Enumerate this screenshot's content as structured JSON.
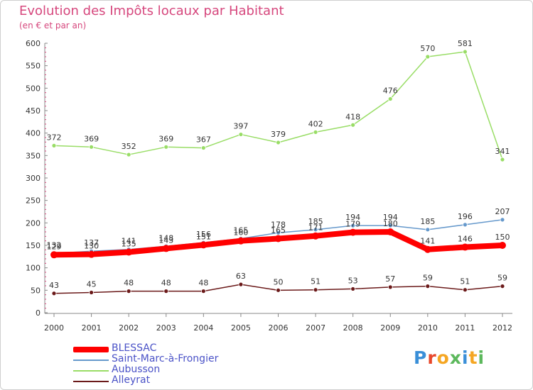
{
  "header": {
    "title": "Evolution des Impôts locaux par Habitant",
    "subtitle": "(en € et par an)"
  },
  "chart_data": {
    "type": "line",
    "title": "Evolution des Impôts locaux par Habitant",
    "subtitle": "(en € et par an)",
    "xlabel": "",
    "ylabel": "",
    "x": [
      "2000",
      "2001",
      "2002",
      "2003",
      "2004",
      "2005",
      "2006",
      "2007",
      "2008",
      "2009",
      "2010",
      "2011",
      "2012"
    ],
    "ylim": [
      0,
      600
    ],
    "yticks": [
      0,
      50,
      100,
      150,
      200,
      250,
      300,
      350,
      400,
      450,
      500,
      550,
      600
    ],
    "grid": false,
    "legend_position": "bottom-left",
    "series": [
      {
        "name": "BLESSAC",
        "color": "#ff0000",
        "values": [
          129,
          130,
          135,
          143,
          151,
          160,
          165,
          171,
          179,
          180,
          141,
          146,
          150
        ]
      },
      {
        "name": "Saint-Marc-à-Frongier",
        "color": "#6699cc",
        "values": [
          132,
          137,
          141,
          148,
          156,
          165,
          178,
          185,
          194,
          194,
          185,
          196,
          207
        ]
      },
      {
        "name": "Aubusson",
        "color": "#99dd66",
        "values": [
          372,
          369,
          352,
          369,
          367,
          397,
          379,
          402,
          418,
          476,
          570,
          581,
          341
        ]
      },
      {
        "name": "Alleyrat",
        "color": "#6b1a1a",
        "values": [
          43,
          45,
          48,
          48,
          48,
          63,
          50,
          51,
          53,
          57,
          59,
          51,
          59
        ]
      }
    ]
  },
  "logo": {
    "letters": [
      {
        "char": "P",
        "color": "#3a8fd8"
      },
      {
        "char": "r",
        "color": "#e8472b"
      },
      {
        "char": "o",
        "color": "#f5a623"
      },
      {
        "char": "x",
        "color": "#5cb85c"
      },
      {
        "char": "i",
        "color": "#3a8fd8"
      },
      {
        "char": "t",
        "color": "#f5a623"
      },
      {
        "char": "i",
        "color": "#5cb85c"
      }
    ]
  }
}
